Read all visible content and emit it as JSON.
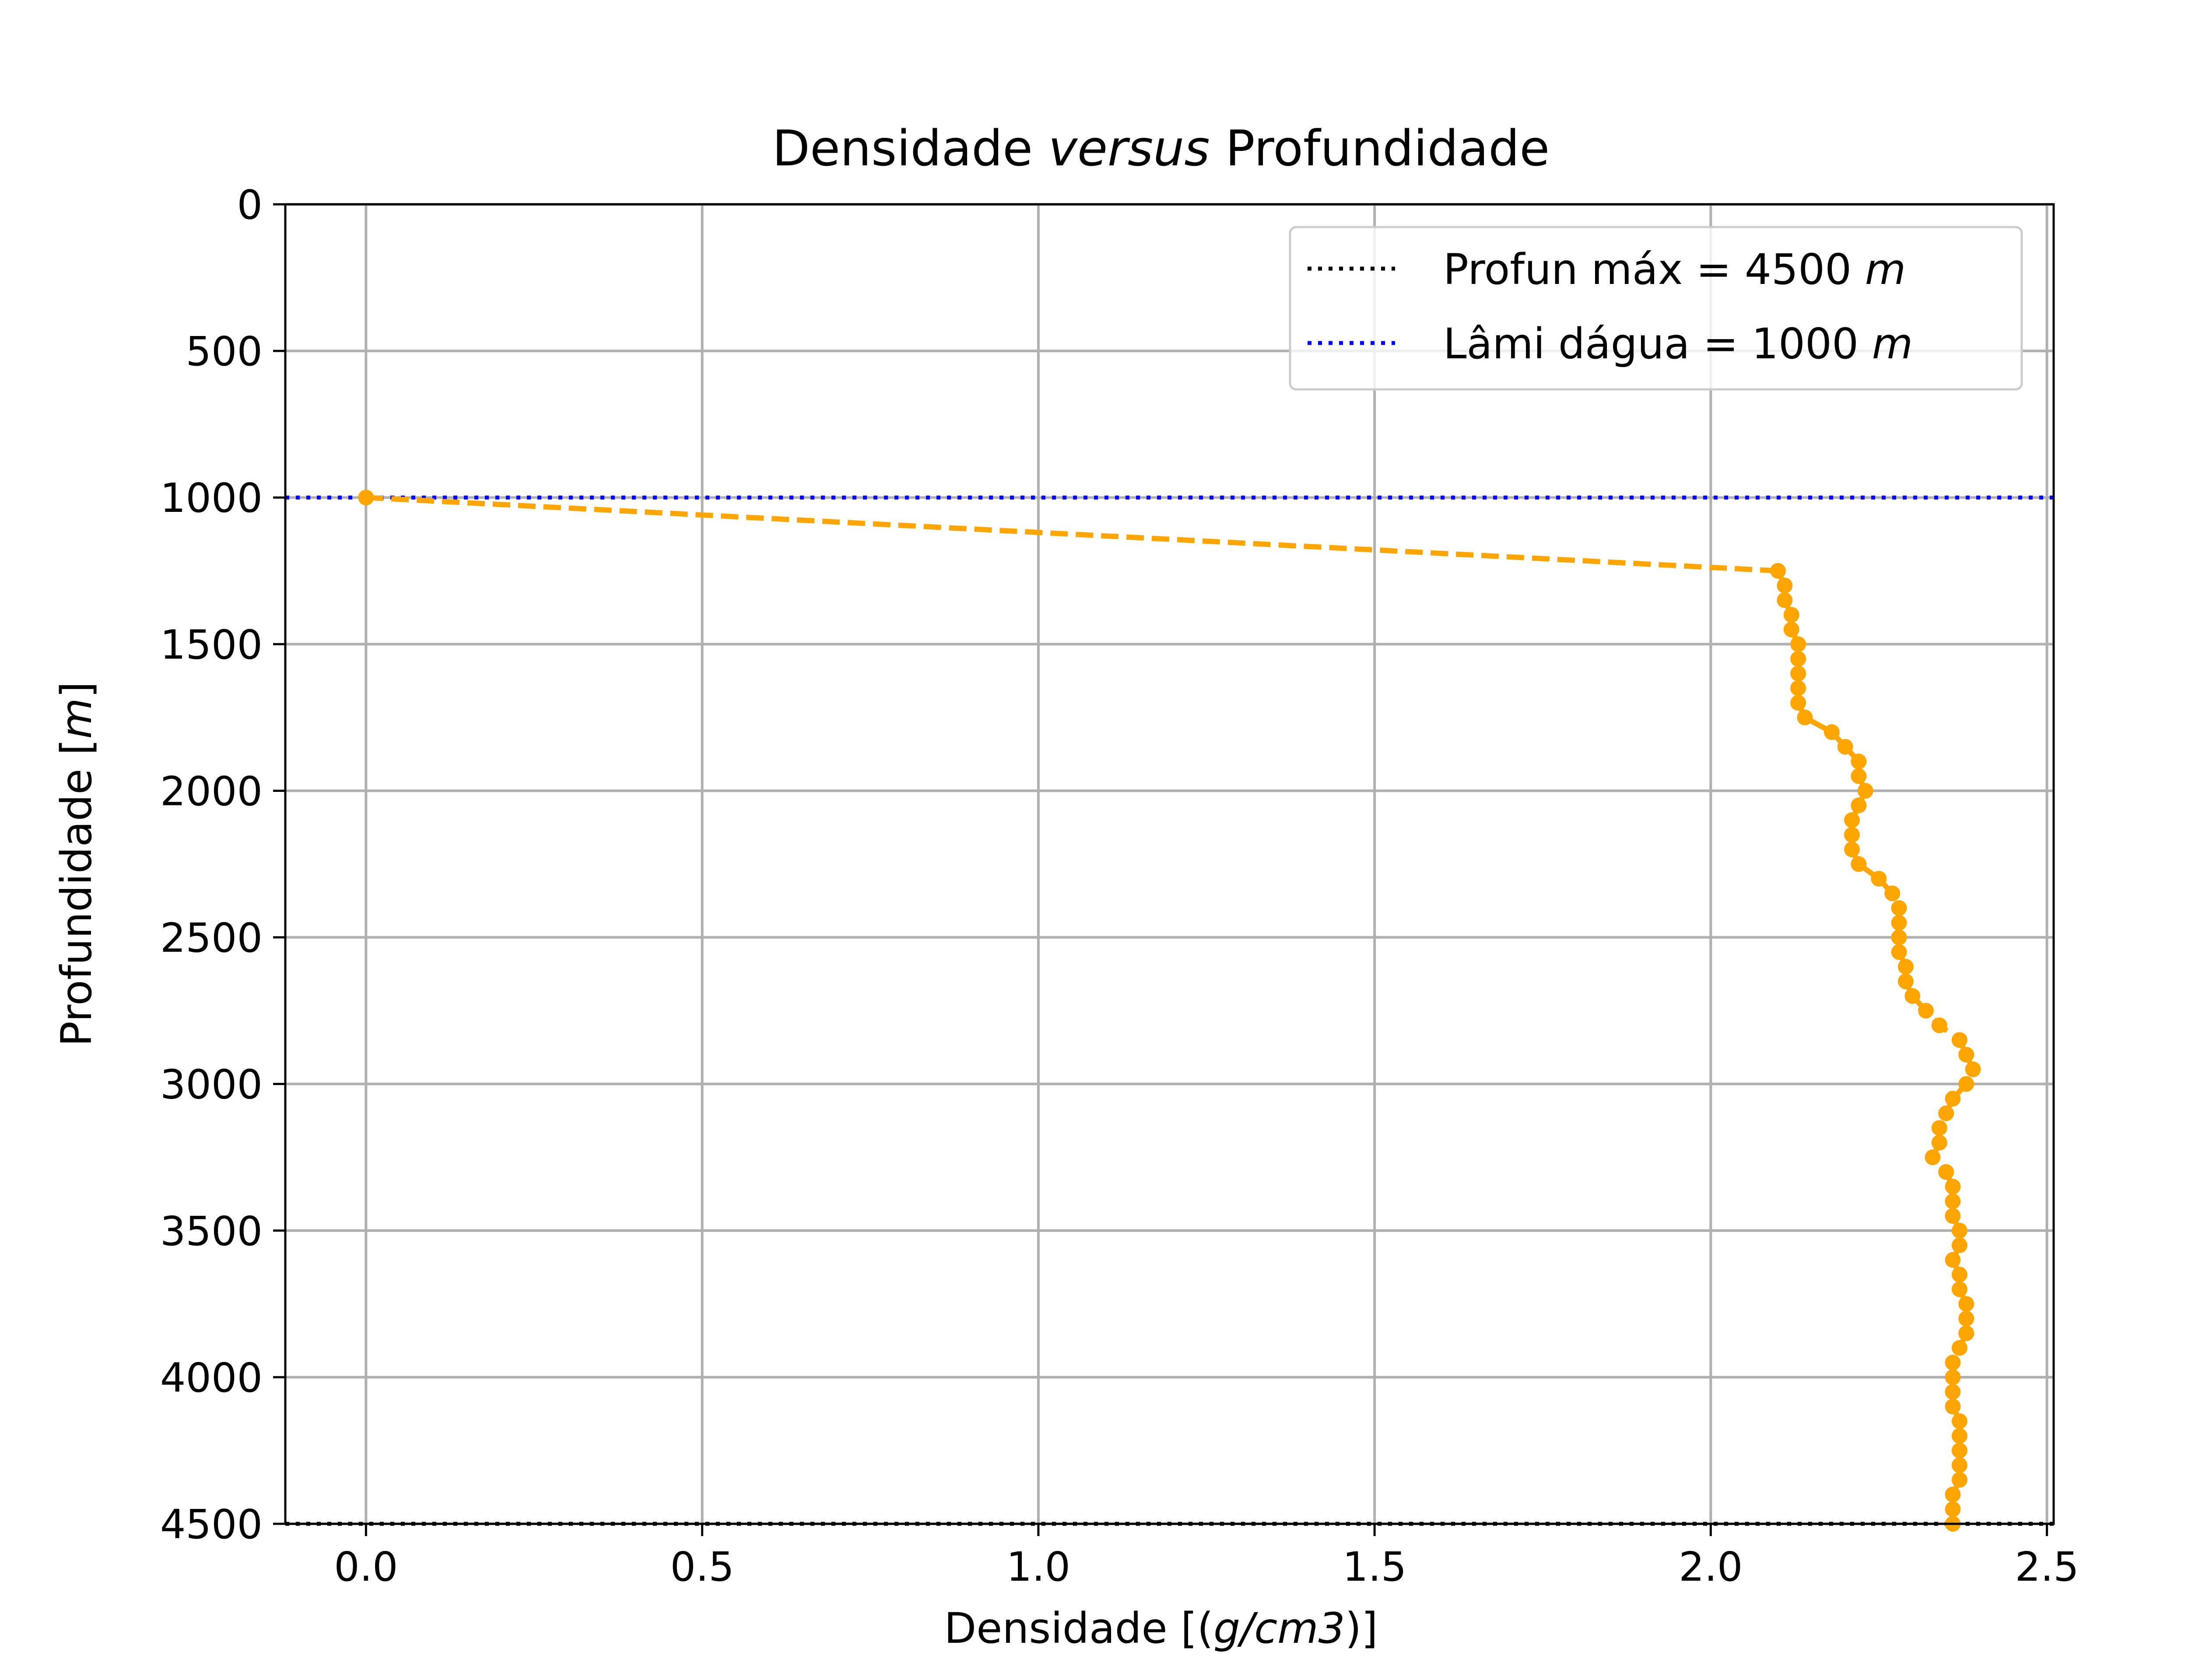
{
  "chart_data": {
    "type": "line",
    "title": "Densidade",
    "title_emph": "versus",
    "title_rest": "Profundidade",
    "xlabel": "Densidade [(",
    "xlabel_unit": "g/cm3",
    "xlabel_end": ")]",
    "ylabel": "Profundidade [",
    "ylabel_unit": "m",
    "ylabel_end": "]",
    "xlim": [
      -0.12,
      2.51
    ],
    "ylim": [
      4500,
      0
    ],
    "y_inverted": true,
    "grid": true,
    "x_ticks": [
      0.0,
      0.5,
      1.0,
      1.5,
      2.0,
      2.5
    ],
    "x_tick_labels": [
      "0.0",
      "0.5",
      "1.0",
      "1.5",
      "2.0",
      "2.5"
    ],
    "y_ticks": [
      0,
      500,
      1000,
      1500,
      2000,
      2500,
      3000,
      3500,
      4000,
      4500
    ],
    "y_tick_labels": [
      "0",
      "500",
      "1000",
      "1500",
      "2000",
      "2500",
      "3000",
      "3500",
      "4000",
      "4500"
    ],
    "legend_position": "top-right",
    "hlines": [
      {
        "label": "Profun máx = 4500 ",
        "unit": "m",
        "y": 4500,
        "color": "#000000",
        "style": "dotted"
      },
      {
        "label": "Lâmi dágua = 1000 ",
        "unit": "m",
        "y": 1000,
        "color": "#0000ff",
        "style": "dotted"
      }
    ],
    "series": [
      {
        "color": "#ffa500",
        "style": "dashed",
        "markers": true,
        "points": [
          [
            0.0,
            1000
          ],
          [
            2.1,
            1250
          ],
          [
            2.11,
            1300
          ],
          [
            2.11,
            1350
          ],
          [
            2.12,
            1400
          ],
          [
            2.12,
            1450
          ],
          [
            2.13,
            1500
          ],
          [
            2.13,
            1550
          ],
          [
            2.13,
            1600
          ],
          [
            2.13,
            1650
          ],
          [
            2.13,
            1700
          ],
          [
            2.14,
            1750
          ],
          [
            2.18,
            1800
          ],
          [
            2.2,
            1850
          ],
          [
            2.22,
            1900
          ],
          [
            2.22,
            1950
          ],
          [
            2.23,
            2000
          ],
          [
            2.22,
            2050
          ],
          [
            2.21,
            2100
          ],
          [
            2.21,
            2150
          ],
          [
            2.21,
            2200
          ],
          [
            2.22,
            2250
          ],
          [
            2.25,
            2300
          ],
          [
            2.27,
            2350
          ],
          [
            2.28,
            2400
          ],
          [
            2.28,
            2450
          ],
          [
            2.28,
            2500
          ],
          [
            2.28,
            2550
          ],
          [
            2.29,
            2600
          ],
          [
            2.29,
            2650
          ],
          [
            2.3,
            2700
          ],
          [
            2.32,
            2750
          ],
          [
            2.34,
            2800
          ],
          [
            2.37,
            2850
          ],
          [
            2.38,
            2900
          ],
          [
            2.39,
            2950
          ],
          [
            2.38,
            3000
          ],
          [
            2.36,
            3050
          ],
          [
            2.35,
            3100
          ],
          [
            2.34,
            3150
          ],
          [
            2.34,
            3200
          ],
          [
            2.33,
            3250
          ],
          [
            2.35,
            3300
          ],
          [
            2.36,
            3350
          ],
          [
            2.36,
            3400
          ],
          [
            2.36,
            3450
          ],
          [
            2.37,
            3500
          ],
          [
            2.37,
            3550
          ],
          [
            2.36,
            3600
          ],
          [
            2.37,
            3650
          ],
          [
            2.37,
            3700
          ],
          [
            2.38,
            3750
          ],
          [
            2.38,
            3800
          ],
          [
            2.38,
            3850
          ],
          [
            2.37,
            3900
          ],
          [
            2.36,
            3950
          ],
          [
            2.36,
            4000
          ],
          [
            2.36,
            4050
          ],
          [
            2.36,
            4100
          ],
          [
            2.37,
            4150
          ],
          [
            2.37,
            4200
          ],
          [
            2.37,
            4250
          ],
          [
            2.37,
            4300
          ],
          [
            2.37,
            4350
          ],
          [
            2.36,
            4400
          ],
          [
            2.36,
            4450
          ],
          [
            2.36,
            4500
          ]
        ]
      }
    ]
  }
}
